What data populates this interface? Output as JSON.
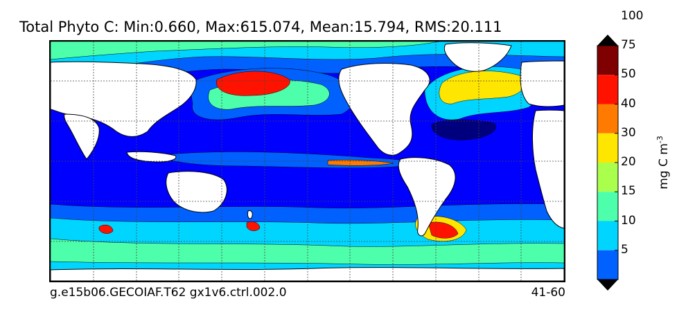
{
  "title": "Total Phyto C: Min:0.660, Max:615.074, Mean:15.794, RMS:20.111",
  "caption_left": "g.e15b06.GECOIAF.T62 gx1v6.ctrl.002.0",
  "caption_right": "41-60",
  "colorbar": {
    "label": "mg C m",
    "label_exponent": "-3",
    "levels": [
      "5",
      "10",
      "15",
      "20",
      "30",
      "40",
      "50",
      "75",
      "100"
    ],
    "colors": [
      "#00007f",
      "#0000ff",
      "#0061ff",
      "#00d5ff",
      "#4dffaa",
      "#aaff4d",
      "#ffe600",
      "#ff7a00",
      "#ff1300",
      "#7f0000"
    ],
    "extend": "both"
  },
  "map": {
    "ocean_base_color": "#0000ff",
    "land_color": "#ffffff",
    "projection": "cylindrical",
    "gridlines": "dashed"
  }
}
